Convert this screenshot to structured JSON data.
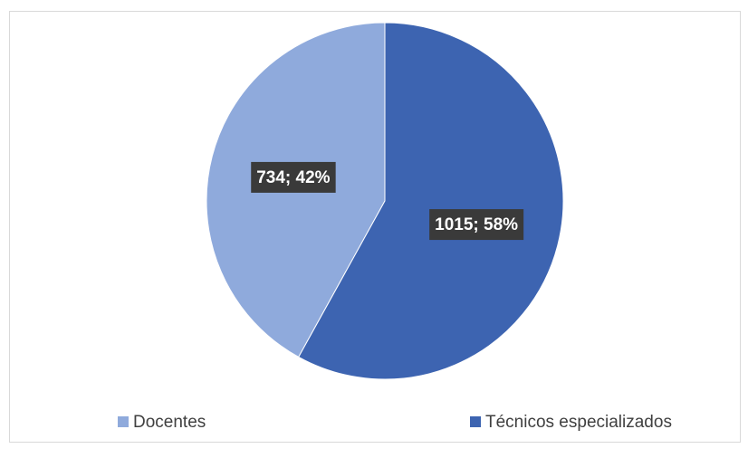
{
  "chart_data": {
    "type": "pie",
    "categories": [
      "Docentes",
      "Técnicos especializados"
    ],
    "values": [
      734,
      1015
    ],
    "value_labels": [
      "734; 42%",
      "1015; 58%"
    ],
    "colors": [
      "#8faadc",
      "#3d64b1"
    ],
    "legend": "bottom"
  }
}
